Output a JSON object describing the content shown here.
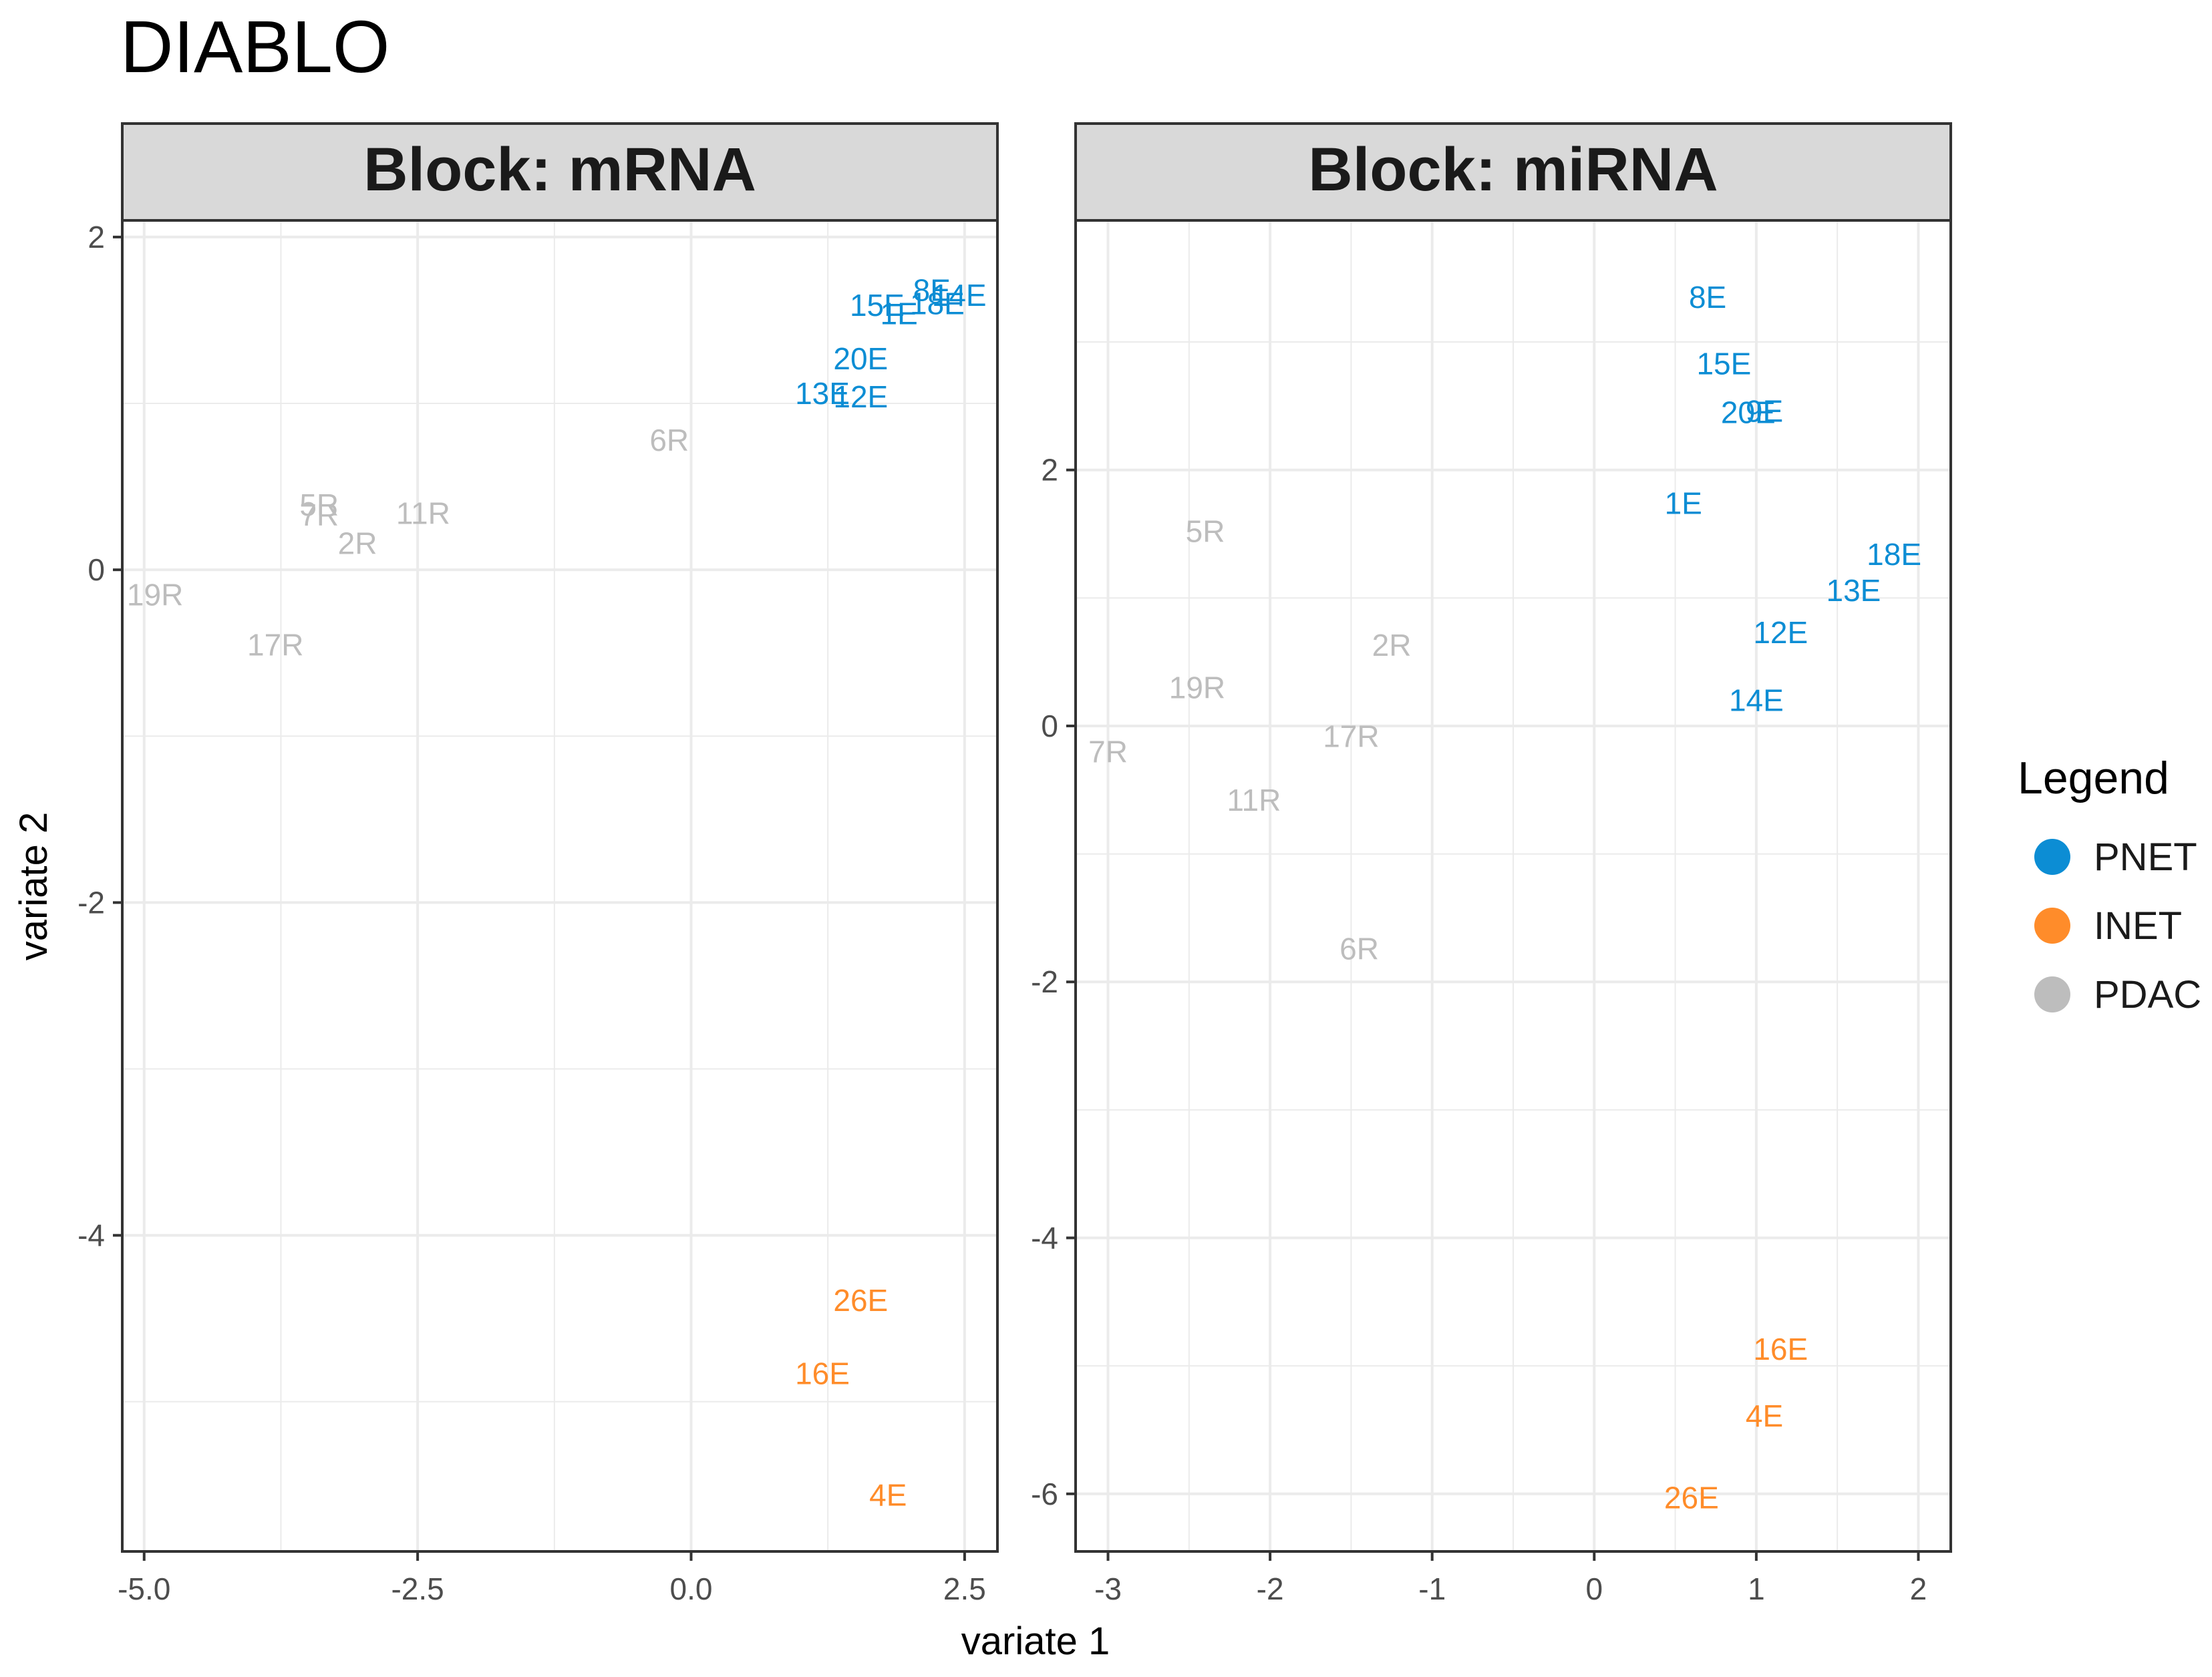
{
  "title": "DIABLO",
  "xlabel": "variate 1",
  "ylabel": "variate 2",
  "legend": {
    "title": "Legend",
    "position": "right",
    "items": [
      {
        "name": "PNET",
        "color": "#0C8DD4"
      },
      {
        "name": "INET",
        "color": "#FF8C2A"
      },
      {
        "name": "PDAC",
        "color": "#BDBDBD"
      }
    ]
  },
  "colors": {
    "PNET": "#0C8DD4",
    "INET": "#FF8C2A",
    "PDAC": "#BDBDBD",
    "strip": "#D9D9D9",
    "grid": "#EBEBEB",
    "frame": "#333333"
  },
  "chart_data": [
    {
      "type": "scatter",
      "panel_title": "Block: mRNA",
      "xlim": [
        -5.2,
        2.8
      ],
      "ylim": [
        -5.9,
        2.1
      ],
      "xticks": [
        -5.0,
        -2.5,
        0.0,
        2.5
      ],
      "xtick_labels": [
        "-5.0",
        "-2.5",
        "0.0",
        "2.5"
      ],
      "yticks": [
        -4,
        -2,
        0,
        2
      ],
      "ytick_labels": [
        "-4",
        "-2",
        "0",
        "2"
      ],
      "points": [
        {
          "label": "8E",
          "group": "PNET",
          "x": 2.2,
          "y": 1.68
        },
        {
          "label": "14E",
          "group": "PNET",
          "x": 2.45,
          "y": 1.65
        },
        {
          "label": "18E",
          "group": "PNET",
          "x": 2.25,
          "y": 1.6
        },
        {
          "label": "15E",
          "group": "PNET",
          "x": 1.7,
          "y": 1.59
        },
        {
          "label": "1E",
          "group": "PNET",
          "x": 1.9,
          "y": 1.54
        },
        {
          "label": "20E",
          "group": "PNET",
          "x": 1.55,
          "y": 1.27
        },
        {
          "label": "13E",
          "group": "PNET",
          "x": 1.2,
          "y": 1.06
        },
        {
          "label": "12E",
          "group": "PNET",
          "x": 1.55,
          "y": 1.04
        },
        {
          "label": "6R",
          "group": "PDAC",
          "x": -0.2,
          "y": 0.78
        },
        {
          "label": "5R",
          "group": "PDAC",
          "x": -3.4,
          "y": 0.39
        },
        {
          "label": "7R",
          "group": "PDAC",
          "x": -3.4,
          "y": 0.33
        },
        {
          "label": "11R",
          "group": "PDAC",
          "x": -2.45,
          "y": 0.34
        },
        {
          "label": "2R",
          "group": "PDAC",
          "x": -3.05,
          "y": 0.16
        },
        {
          "label": "19R",
          "group": "PDAC",
          "x": -4.9,
          "y": -0.15
        },
        {
          "label": "17R",
          "group": "PDAC",
          "x": -3.8,
          "y": -0.45
        },
        {
          "label": "26E",
          "group": "INET",
          "x": 1.55,
          "y": -4.39
        },
        {
          "label": "16E",
          "group": "INET",
          "x": 1.2,
          "y": -4.83
        },
        {
          "label": "4E",
          "group": "INET",
          "x": 1.8,
          "y": -5.56
        }
      ]
    },
    {
      "type": "scatter",
      "panel_title": "Block: miRNA",
      "xlim": [
        -3.2,
        2.2
      ],
      "ylim": [
        -6.45,
        3.95
      ],
      "xticks": [
        -3,
        -2,
        -1,
        0,
        1,
        2
      ],
      "xtick_labels": [
        "-3",
        "-2",
        "-1",
        "0",
        "1",
        "2"
      ],
      "yticks": [
        -6,
        -4,
        -2,
        0,
        2
      ],
      "ytick_labels": [
        "-6",
        "-4",
        "-2",
        "0",
        "2"
      ],
      "points": [
        {
          "label": "8E",
          "group": "PNET",
          "x": 0.7,
          "y": 3.35
        },
        {
          "label": "15E",
          "group": "PNET",
          "x": 0.8,
          "y": 2.83
        },
        {
          "label": "20E",
          "group": "PNET",
          "x": 0.95,
          "y": 2.45
        },
        {
          "label": "9E",
          "group": "PNET",
          "x": 1.05,
          "y": 2.46
        },
        {
          "label": "1E",
          "group": "PNET",
          "x": 0.55,
          "y": 1.74
        },
        {
          "label": "18E",
          "group": "PNET",
          "x": 1.85,
          "y": 1.34
        },
        {
          "label": "13E",
          "group": "PNET",
          "x": 1.6,
          "y": 1.06
        },
        {
          "label": "12E",
          "group": "PNET",
          "x": 1.15,
          "y": 0.73
        },
        {
          "label": "14E",
          "group": "PNET",
          "x": 1.0,
          "y": 0.2
        },
        {
          "label": "5R",
          "group": "PDAC",
          "x": -2.4,
          "y": 1.52
        },
        {
          "label": "2R",
          "group": "PDAC",
          "x": -1.25,
          "y": 0.63
        },
        {
          "label": "19R",
          "group": "PDAC",
          "x": -2.45,
          "y": 0.3
        },
        {
          "label": "17R",
          "group": "PDAC",
          "x": -1.5,
          "y": -0.08
        },
        {
          "label": "7R",
          "group": "PDAC",
          "x": -3.0,
          "y": -0.2
        },
        {
          "label": "11R",
          "group": "PDAC",
          "x": -2.1,
          "y": -0.58
        },
        {
          "label": "6R",
          "group": "PDAC",
          "x": -1.45,
          "y": -1.74
        },
        {
          "label": "16E",
          "group": "INET",
          "x": 1.15,
          "y": -4.87
        },
        {
          "label": "4E",
          "group": "INET",
          "x": 1.05,
          "y": -5.39
        },
        {
          "label": "26E",
          "group": "INET",
          "x": 0.6,
          "y": -6.03
        }
      ]
    }
  ]
}
